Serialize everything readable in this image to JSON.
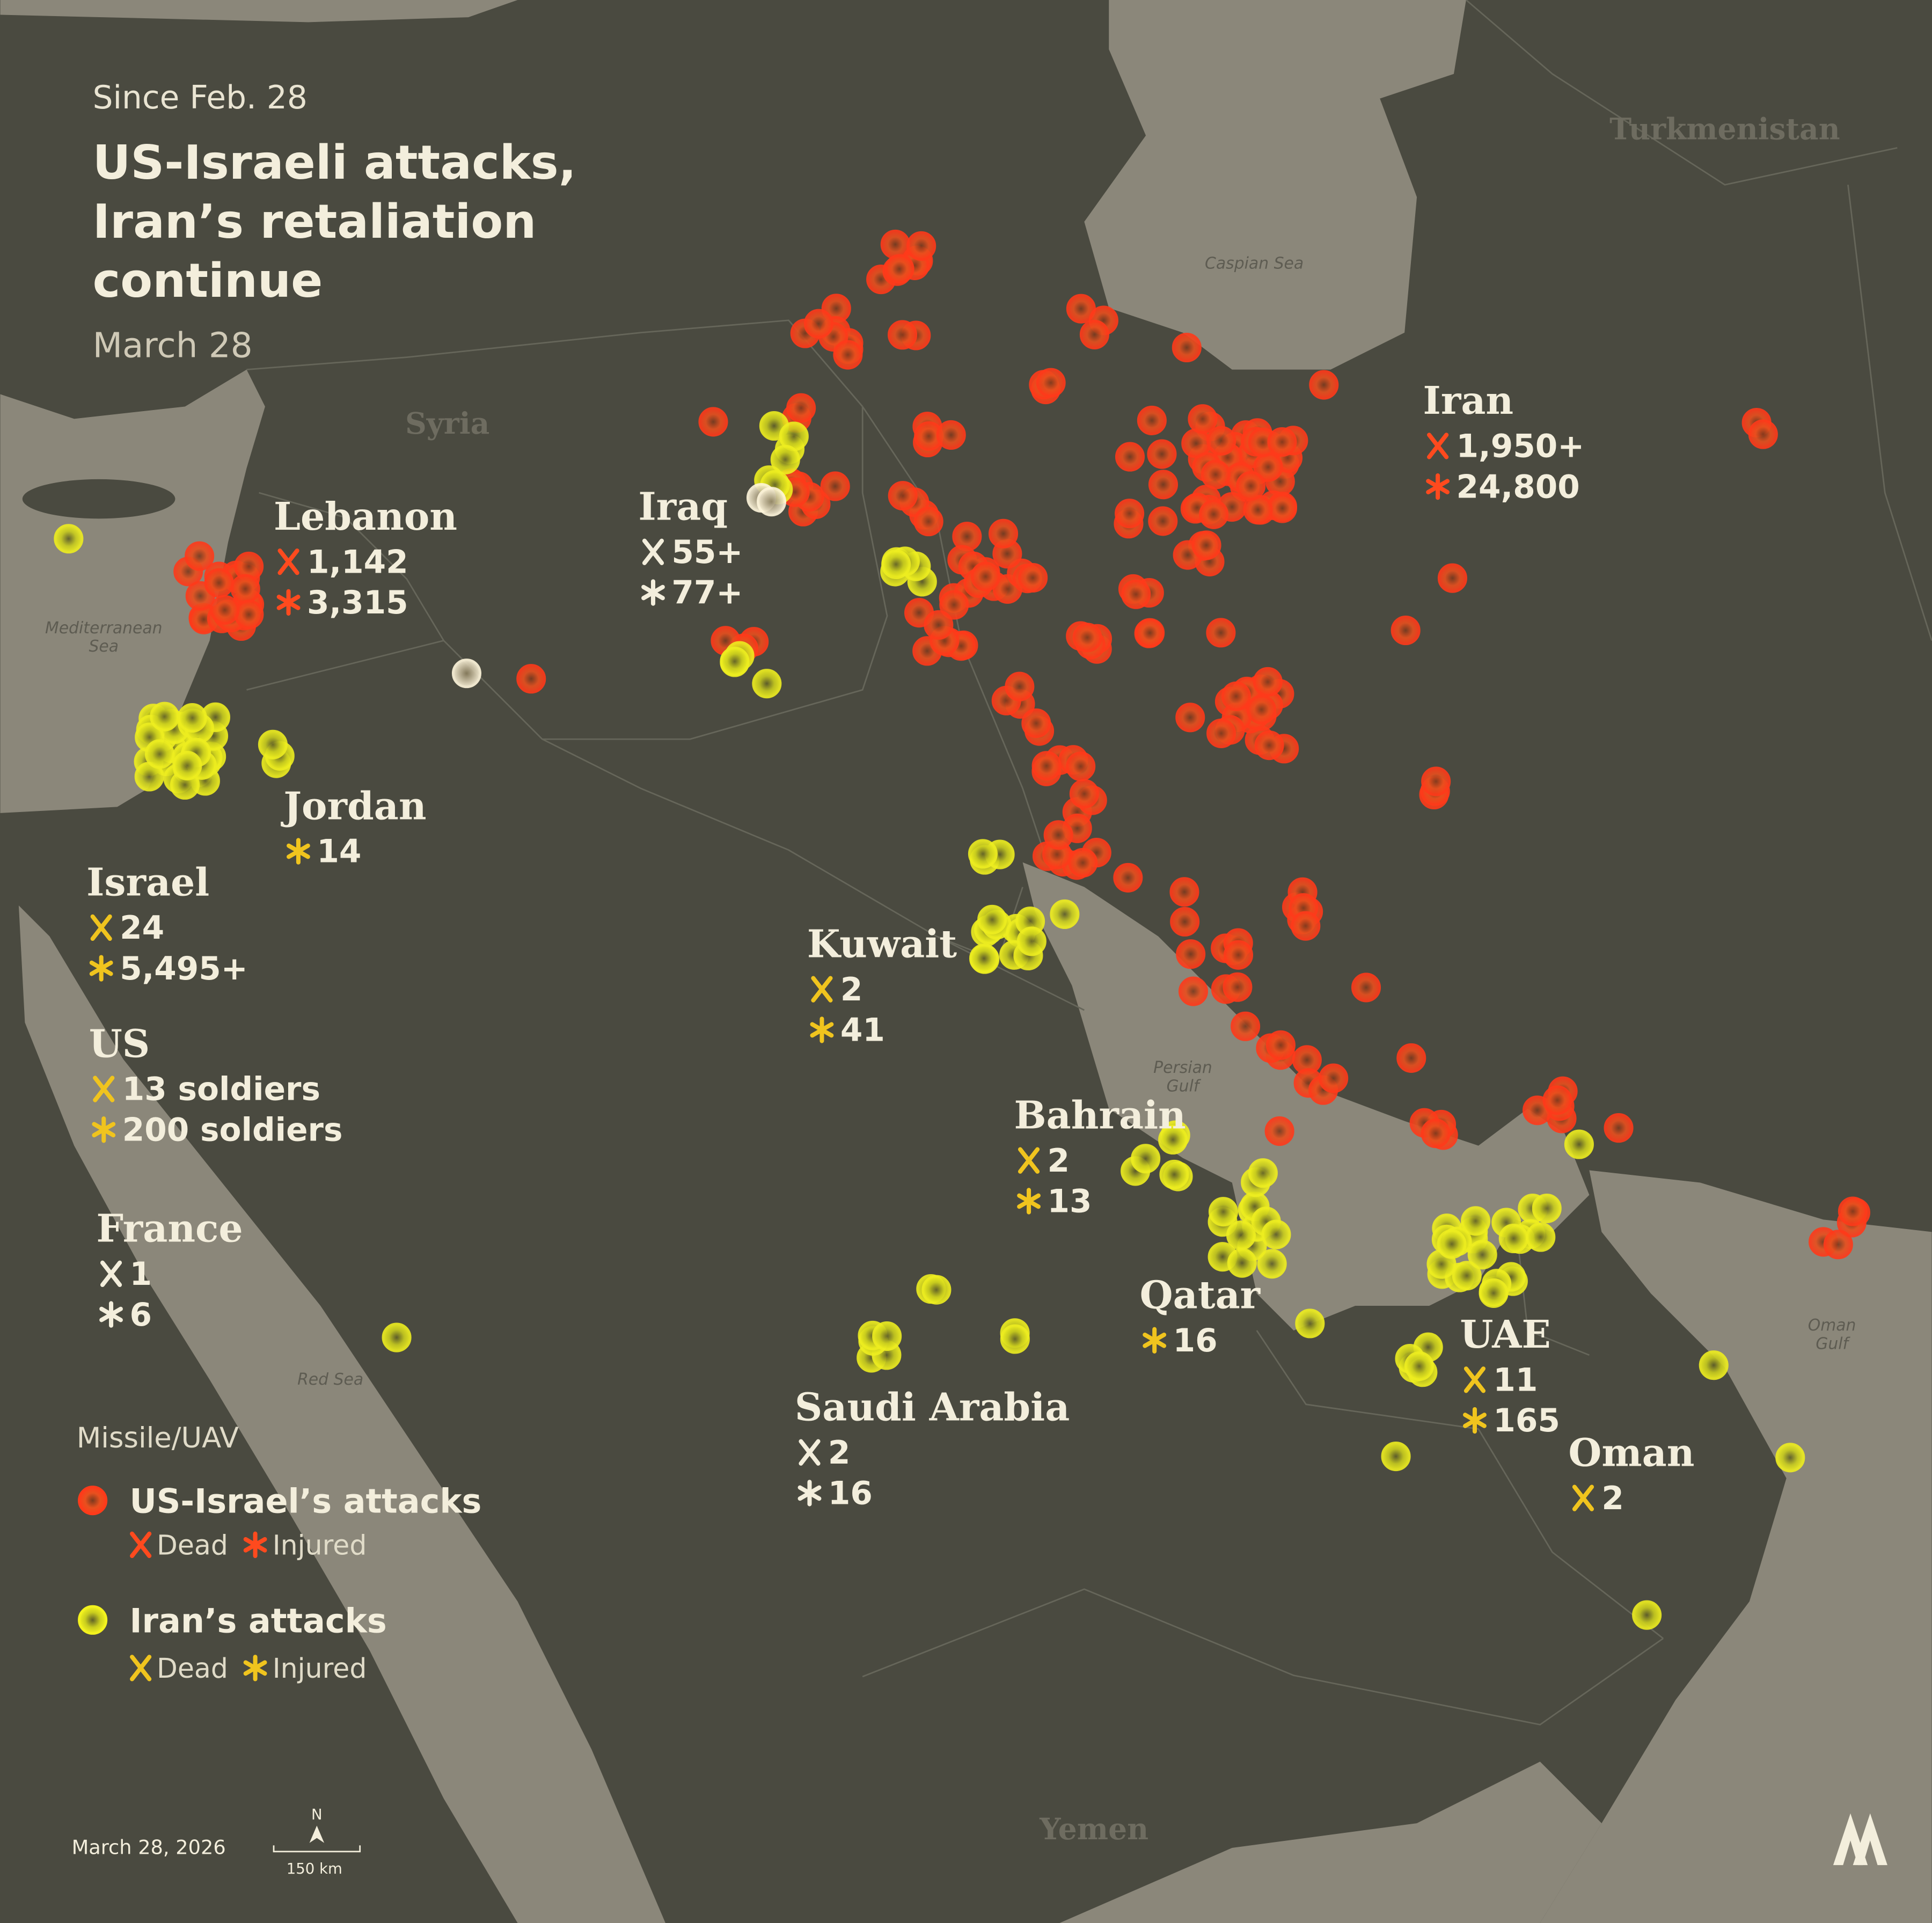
{
  "header": {
    "kicker": "Since Feb. 28",
    "title": [
      "US-Israeli attacks,",
      "Iran’s retaliation",
      "continue"
    ],
    "date": "March 28"
  },
  "countries": [
    {
      "name": "Iran",
      "dead": "1,950+",
      "injured": "24,800"
    },
    {
      "name": "Iraq",
      "dead": "55+",
      "injured": "77+"
    },
    {
      "name": "Lebanon",
      "dead": "1,142",
      "injured": "3,315"
    },
    {
      "name": "Jordan",
      "injured": "14"
    },
    {
      "name": "Israel",
      "dead": "24",
      "injured": "5,495+"
    },
    {
      "name": "US",
      "dead": "13 soldiers",
      "injured": "200 soldiers"
    },
    {
      "name": "France",
      "dead": "1",
      "injured": "6"
    },
    {
      "name": "Kuwait",
      "dead": "2",
      "injured": "41"
    },
    {
      "name": "Bahrain",
      "dead": "2",
      "injured": "13"
    },
    {
      "name": "Qatar",
      "injured": "16"
    },
    {
      "name": "Saudi Arabia",
      "dead": "2",
      "injured": "16"
    },
    {
      "name": "UAE",
      "dead": "11",
      "injured": "165"
    },
    {
      "name": "Oman",
      "dead": "2"
    }
  ],
  "map_labels": {
    "countries": [
      "Syria",
      "Turkmenistan",
      "Yemen"
    ],
    "seas": [
      [
        "Caspian Sea"
      ],
      [
        "Mediterranean",
        "Sea"
      ],
      [
        "Persian",
        "Gulf"
      ],
      [
        "Red Sea"
      ],
      [
        "Oman",
        "Gulf"
      ]
    ]
  },
  "legend": {
    "heading": "Missile/UAV",
    "items": [
      {
        "label": "US-Israel’s attacks",
        "dead": "Dead",
        "injured": "Injured"
      },
      {
        "label": "Iran’s attacks",
        "dead": "Dead",
        "injured": "Injured"
      }
    ]
  },
  "footer": {
    "date": "March 28, 2026",
    "north": "N",
    "scale": "150 km"
  }
}
